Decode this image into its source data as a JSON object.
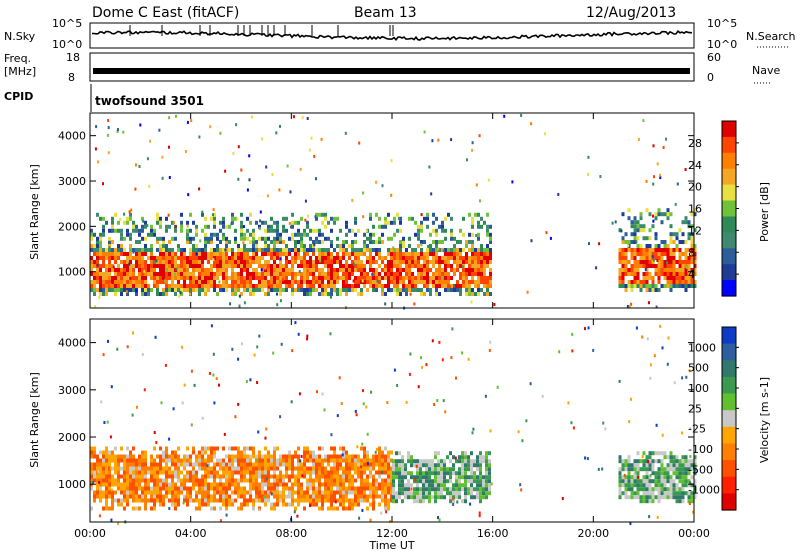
{
  "header": {
    "title": "Dome C East (fitACF)",
    "beam": "Beam 13",
    "date": "12/Aug/2013"
  },
  "info_panels": {
    "nsky_label": "N.Sky",
    "nsearch_label": "N.Search",
    "freq_label_1": "Freq.",
    "freq_label_2": "[MHz]",
    "nave_label": "Nave",
    "noise_ticks_left": [
      "10^5",
      "10^0"
    ],
    "noise_ticks_right": [
      "10^5",
      "10^0"
    ],
    "freq_ticks": [
      "18",
      "8"
    ],
    "nave_ticks": [
      "60",
      "0"
    ],
    "cpid_label": "CPID",
    "cpid_value": "twofsound 3501"
  },
  "colors": {
    "power_scale": [
      "#0000ff",
      "#1e3c96",
      "#2b5d9b",
      "#3d8a6e",
      "#2e8b57",
      "#6fc23a",
      "#e8e040",
      "#f5a623",
      "#ff7f00",
      "#ff4500",
      "#e00000"
    ],
    "velocity_scale": [
      "#0a3cc8",
      "#2d5fa0",
      "#2f7a6a",
      "#3a9a50",
      "#62c030",
      "#c8c8c8",
      "#ffa500",
      "#ff7f00",
      "#ff5000",
      "#ff2000",
      "#e00000"
    ]
  },
  "chart_data": [
    {
      "type": "heatmap",
      "title": "",
      "ylabel": "Slant Range [km]",
      "xlabel": "",
      "x_ticks": [
        "00:00",
        "04:00",
        "08:00",
        "12:00",
        "16:00",
        "20:00",
        "00:00"
      ],
      "y_ticks": [
        "1000",
        "2000",
        "3000",
        "4000"
      ],
      "ylim": [
        200,
        4500
      ],
      "colorbar_label": "Power [dB]",
      "colorbar_ticks": [
        "4",
        "8",
        "12",
        "16",
        "20",
        "24",
        "28"
      ],
      "colorbar_range": [
        0,
        32
      ],
      "bands": [
        {
          "t_start": 0.0,
          "t_end": 15.9,
          "r_low": 500,
          "r_high": 1700,
          "level": "high"
        },
        {
          "t_start": 0.0,
          "t_end": 15.9,
          "r_low": 1700,
          "r_high": 2300,
          "level": "medium"
        },
        {
          "t_start": 21.0,
          "t_end": 24.0,
          "r_low": 600,
          "r_high": 1700,
          "level": "high"
        },
        {
          "t_start": 21.0,
          "t_end": 24.0,
          "r_low": 1700,
          "r_high": 2400,
          "level": "medium"
        }
      ]
    },
    {
      "type": "heatmap",
      "title": "",
      "ylabel": "Slant Range [km]",
      "xlabel": "Time UT",
      "x_ticks": [
        "00:00",
        "04:00",
        "08:00",
        "12:00",
        "16:00",
        "20:00",
        "00:00"
      ],
      "y_ticks": [
        "1000",
        "2000",
        "3000",
        "4000"
      ],
      "ylim": [
        200,
        4500
      ],
      "colorbar_label": "Velocity [m s-1]",
      "colorbar_ticks": [
        "1000",
        "500",
        "100",
        "25",
        "-25",
        "-100",
        "-500",
        "-1000"
      ],
      "bands": [
        {
          "t_start": 0.0,
          "t_end": 12.0,
          "r_low": 500,
          "r_high": 1800,
          "level": "negative"
        },
        {
          "t_start": 12.0,
          "t_end": 15.9,
          "r_low": 600,
          "r_high": 1700,
          "level": "positive"
        },
        {
          "t_start": 21.0,
          "t_end": 24.0,
          "r_low": 600,
          "r_high": 1700,
          "level": "positive"
        }
      ]
    }
  ]
}
